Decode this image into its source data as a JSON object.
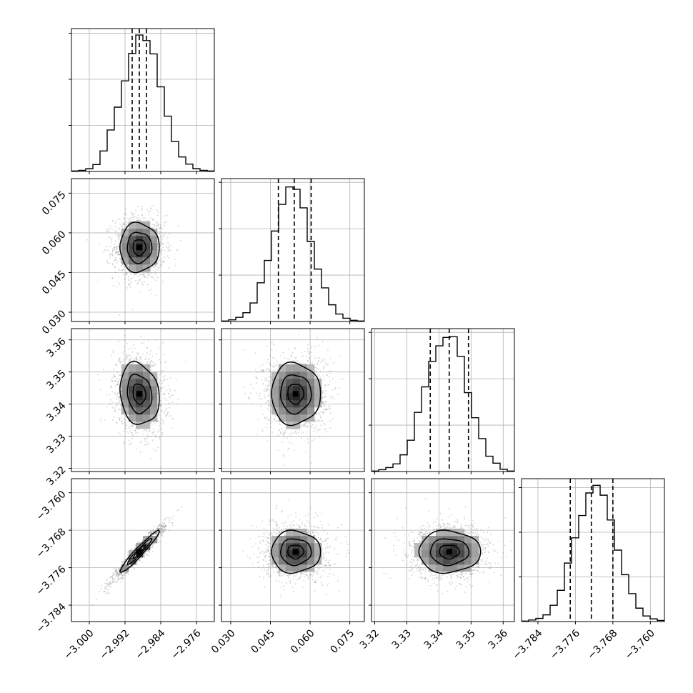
{
  "chart_data": {
    "type": "corner",
    "title": "",
    "colors": {
      "line": "#000000",
      "grid": "#b0b0b0",
      "points": "#7f7f7f"
    },
    "grid": true,
    "dimensions": [
      {
        "range": [
          -3.004,
          -2.972
        ],
        "ticks": [
          -3.0,
          -2.992,
          -2.984,
          -2.976
        ],
        "tick_labels": [
          "−3.000",
          "−2.992",
          "−2.984",
          "−2.976"
        ]
      },
      {
        "range": [
          0.0265,
          0.0805
        ],
        "ticks": [
          0.03,
          0.045,
          0.06,
          0.075
        ],
        "tick_labels": [
          "0.030",
          "0.045",
          "0.060",
          "0.075"
        ]
      },
      {
        "range": [
          3.319,
          3.3635
        ],
        "ticks": [
          3.32,
          3.33,
          3.34,
          3.35,
          3.36
        ],
        "tick_labels": [
          "3.32",
          "3.33",
          "3.34",
          "3.35",
          "3.36"
        ]
      },
      {
        "range": [
          -3.7875,
          -3.757
        ],
        "ticks": [
          -3.784,
          -3.776,
          -3.768,
          -3.76
        ],
        "tick_labels": [
          "−3.784",
          "−3.776",
          "−3.768",
          "−3.760"
        ]
      }
    ],
    "histograms": [
      {
        "dim": 0,
        "edges": [
          -3.004,
          -3.0024,
          -3.0008,
          -2.9992,
          -2.9976,
          -2.996,
          -2.9944,
          -2.9928,
          -2.9912,
          -2.9896,
          -2.988,
          -2.9864,
          -2.9848,
          -2.9832,
          -2.9816,
          -2.98,
          -2.9784,
          -2.9768,
          -2.9752,
          -2.9736,
          -2.972
        ],
        "counts": [
          2,
          5,
          12,
          30,
          89,
          180,
          279,
          393,
          512,
          592,
          568,
          510,
          367,
          240,
          130,
          63,
          32,
          12,
          5,
          2
        ],
        "quantiles": [
          -2.9904,
          -2.9888,
          -2.9872
        ],
        "ymax": 620,
        "yticks": [
          200,
          400,
          600
        ]
      },
      {
        "dim": 1,
        "edges": [
          0.0265,
          0.0292,
          0.0319,
          0.0346,
          0.0373,
          0.04,
          0.0427,
          0.0454,
          0.0481,
          0.0508,
          0.0535,
          0.0562,
          0.0589,
          0.0616,
          0.0643,
          0.067,
          0.0697,
          0.0724,
          0.0751,
          0.0778,
          0.0805
        ],
        "counts": [
          2,
          7,
          18,
          38,
          80,
          167,
          263,
          390,
          505,
          580,
          570,
          490,
          345,
          226,
          145,
          72,
          32,
          14,
          5,
          2
        ],
        "quantiles": [
          0.048,
          0.054,
          0.0604
        ],
        "ymax": 616,
        "yticks": [
          200,
          400,
          600
        ]
      },
      {
        "dim": 2,
        "edges": [
          3.319,
          3.32123,
          3.32345,
          3.32568,
          3.3279,
          3.33013,
          3.33235,
          3.33458,
          3.3368,
          3.33903,
          3.34125,
          3.34348,
          3.3457,
          3.34793,
          3.35015,
          3.35238,
          3.3546,
          3.35683,
          3.35905,
          3.36128,
          3.3635
        ],
        "counts": [
          2,
          8,
          17,
          33,
          72,
          135,
          255,
          365,
          475,
          542,
          578,
          581,
          497,
          340,
          232,
          142,
          66,
          36,
          10,
          2
        ],
        "quantiles": [
          3.3373,
          3.3432,
          3.3492
        ],
        "ymax": 616,
        "yticks": [
          200,
          400,
          600
        ]
      },
      {
        "dim": 3,
        "edges": [
          -3.7875,
          -3.78597,
          -3.78445,
          -3.78292,
          -3.7814,
          -3.77987,
          -3.77835,
          -3.77682,
          -3.7753,
          -3.77378,
          -3.77225,
          -3.77072,
          -3.7692,
          -3.76767,
          -3.76615,
          -3.76462,
          -3.7631,
          -3.76158,
          -3.76005,
          -3.75853,
          -3.757
        ],
        "counts": [
          2,
          7,
          14,
          30,
          73,
          140,
          262,
          375,
          475,
          576,
          610,
          566,
          455,
          320,
          210,
          125,
          60,
          25,
          12,
          5
        ],
        "quantiles": [
          -3.7771,
          -3.7726,
          -3.768
        ],
        "ymax": 640,
        "yticks": [
          200,
          400,
          600
        ]
      }
    ],
    "pairs": [
      {
        "x": 0,
        "y": 1,
        "mean": [
          -2.9888,
          0.0545
        ],
        "sd": [
          0.00275,
          0.0058
        ],
        "corr": 0.0
      },
      {
        "x": 0,
        "y": 2,
        "mean": [
          -2.9888,
          3.3432
        ],
        "sd": [
          0.00275,
          0.006
        ],
        "corr": -0.15
      },
      {
        "x": 0,
        "y": 3,
        "mean": [
          -2.9888,
          -3.7726
        ],
        "sd": [
          0.00275,
          0.0028
        ],
        "corr": 0.96
      },
      {
        "x": 1,
        "y": 2,
        "mean": [
          0.0545,
          3.3432
        ],
        "sd": [
          0.0058,
          0.006
        ],
        "corr": 0.0
      },
      {
        "x": 1,
        "y": 3,
        "mean": [
          0.0545,
          -3.7726
        ],
        "sd": [
          0.0058,
          0.0028
        ],
        "corr": 0.0
      },
      {
        "x": 2,
        "y": 3,
        "mean": [
          3.3432,
          -3.7726
        ],
        "sd": [
          0.006,
          0.0028
        ],
        "corr": 0.0
      }
    ]
  }
}
